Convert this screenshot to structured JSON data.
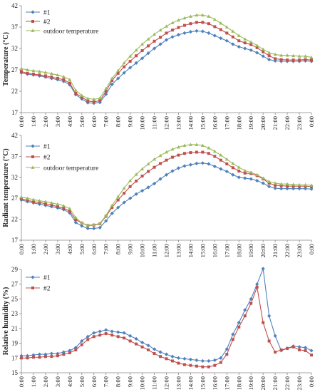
{
  "chart_data": [
    {
      "type": "line",
      "ylabel": "Temperature (°C)",
      "ylim": [
        17,
        42
      ],
      "yticks": [
        17,
        22,
        27,
        32,
        37,
        42
      ],
      "grid": false,
      "legend_position": "top-left",
      "x_labels": [
        "0:00",
        "1:00",
        "2:00",
        "3:00",
        "4:00",
        "5:00",
        "6:00",
        "7:00",
        "8:00",
        "9:00",
        "10:00",
        "11:00",
        "12:00",
        "13:00",
        "14:00",
        "15:00",
        "16:00",
        "17:00",
        "18:00",
        "19:00",
        "20:00",
        "21:00",
        "22:00",
        "23:00",
        "0:00"
      ],
      "series": [
        {
          "name": "#1",
          "color": "#4f81bd",
          "marker": "diamond",
          "values": [
            26.3,
            26.0,
            25.8,
            25.6,
            25.3,
            25.0,
            24.7,
            24.3,
            23.5,
            21.2,
            20.2,
            19.3,
            19.2,
            19.4,
            21.3,
            23.6,
            25.0,
            26.3,
            27.5,
            28.6,
            29.7,
            30.9,
            32.0,
            33.0,
            34.0,
            34.7,
            35.2,
            35.6,
            35.9,
            36.1,
            36.0,
            35.6,
            35.0,
            34.4,
            33.8,
            33.0,
            32.4,
            32.0,
            31.6,
            31.0,
            30.2,
            29.4,
            29.1,
            29.0,
            29.0,
            29.0,
            29.0,
            29.1,
            29.0
          ]
        },
        {
          "name": "#2",
          "color": "#c0504d",
          "marker": "square",
          "values": [
            26.6,
            26.2,
            26.0,
            25.8,
            25.6,
            25.3,
            25.0,
            24.7,
            23.9,
            21.5,
            20.6,
            19.7,
            19.5,
            19.8,
            22.0,
            24.5,
            26.2,
            27.7,
            29.0,
            30.3,
            31.5,
            32.6,
            33.7,
            34.6,
            35.6,
            36.3,
            36.9,
            37.4,
            37.8,
            38.1,
            38.1,
            37.8,
            37.1,
            36.4,
            35.6,
            34.7,
            33.8,
            33.3,
            32.9,
            32.2,
            31.2,
            30.3,
            29.6,
            29.4,
            29.3,
            29.3,
            29.3,
            29.4,
            29.3
          ]
        },
        {
          "name": "outdoor temperature",
          "color": "#9bbb59",
          "marker": "triangle",
          "values": [
            27.3,
            27.0,
            26.8,
            26.6,
            26.4,
            26.1,
            25.8,
            25.4,
            24.7,
            22.2,
            21.0,
            20.3,
            20.1,
            20.4,
            22.6,
            25.0,
            26.8,
            28.6,
            30.2,
            31.6,
            33.0,
            34.2,
            35.3,
            36.3,
            37.2,
            38.0,
            38.6,
            39.1,
            39.5,
            39.8,
            39.8,
            39.5,
            38.8,
            37.9,
            37.0,
            36.0,
            35.0,
            34.2,
            33.5,
            32.7,
            31.8,
            31.0,
            30.6,
            30.4,
            30.4,
            30.3,
            30.2,
            30.2,
            29.9
          ]
        }
      ]
    },
    {
      "type": "line",
      "ylabel": "Radiant temperature (°C)",
      "ylim": [
        17,
        42
      ],
      "yticks": [
        17,
        22,
        27,
        32,
        37,
        42
      ],
      "grid": false,
      "legend_position": "top-left",
      "x_labels": [
        "0:00",
        "1:00",
        "2:00",
        "3:00",
        "4:00",
        "5:00",
        "6:00",
        "7:00",
        "8:00",
        "9:00",
        "10:00",
        "11:00",
        "12:00",
        "13:00",
        "14:00",
        "15:00",
        "16:00",
        "17:00",
        "18:00",
        "19:00",
        "20:00",
        "21:00",
        "22:00",
        "23:00",
        "0:00"
      ],
      "series": [
        {
          "name": "#1",
          "color": "#4f81bd",
          "marker": "diamond",
          "values": [
            26.6,
            26.2,
            25.9,
            25.6,
            25.3,
            25.0,
            24.7,
            24.3,
            23.5,
            21.2,
            20.4,
            19.8,
            19.8,
            20.0,
            21.6,
            23.4,
            24.8,
            26.0,
            27.0,
            28.0,
            28.8,
            29.6,
            30.5,
            31.6,
            32.6,
            33.5,
            34.2,
            34.7,
            35.0,
            35.3,
            35.4,
            35.2,
            34.6,
            34.0,
            33.4,
            32.6,
            32.0,
            31.8,
            31.6,
            31.2,
            30.6,
            29.8,
            29.4,
            29.3,
            29.3,
            29.3,
            29.3,
            29.3,
            29.2
          ]
        },
        {
          "name": "#2",
          "color": "#c0504d",
          "marker": "square",
          "values": [
            26.9,
            26.5,
            26.2,
            26.0,
            25.7,
            25.4,
            25.0,
            24.6,
            23.9,
            21.9,
            21.1,
            20.5,
            20.6,
            20.9,
            22.7,
            24.8,
            26.6,
            28.2,
            29.8,
            31.1,
            32.3,
            33.4,
            34.4,
            35.3,
            36.1,
            36.8,
            37.3,
            37.7,
            37.9,
            38.0,
            38.0,
            37.7,
            37.0,
            36.1,
            35.2,
            34.3,
            33.5,
            33.0,
            32.9,
            32.4,
            31.6,
            30.6,
            30.1,
            30.0,
            29.9,
            29.9,
            29.9,
            29.9,
            29.8
          ]
        },
        {
          "name": "outdoor temperature",
          "color": "#9bbb59",
          "marker": "triangle",
          "values": [
            27.3,
            27.0,
            26.7,
            26.4,
            26.2,
            25.9,
            25.6,
            25.2,
            24.5,
            22.4,
            21.1,
            20.6,
            20.7,
            21.0,
            22.9,
            25.3,
            27.4,
            29.4,
            31.2,
            32.7,
            34.0,
            35.2,
            36.3,
            37.2,
            38.0,
            38.7,
            39.2,
            39.6,
            39.8,
            39.8,
            39.6,
            39.0,
            38.2,
            37.3,
            36.3,
            35.3,
            34.4,
            33.6,
            33.2,
            32.6,
            31.8,
            31.0,
            30.6,
            30.4,
            30.4,
            30.3,
            30.2,
            30.2,
            30.1
          ]
        }
      ]
    },
    {
      "type": "line",
      "ylabel": "Relative humidity (%)",
      "ylim": [
        15,
        29
      ],
      "yticks": [
        15,
        17,
        19,
        21,
        23,
        25,
        27,
        29
      ],
      "grid": false,
      "legend_position": "top-left",
      "x_labels": [
        "0:00",
        "1:00",
        "2:00",
        "3:00",
        "4:00",
        "5:00",
        "6:00",
        "7:00",
        "8:00",
        "9:00",
        "10:00",
        "11:00",
        "12:00",
        "13:00",
        "14:00",
        "15:00",
        "16:00",
        "17:00",
        "18:00",
        "19:00",
        "20:00",
        "21:00",
        "22:00",
        "23:00",
        "0:00"
      ],
      "series": [
        {
          "name": "#1",
          "color": "#4f81bd",
          "marker": "diamond",
          "values": [
            17.3,
            17.3,
            17.4,
            17.5,
            17.5,
            17.6,
            17.6,
            17.8,
            18.0,
            18.4,
            19.3,
            19.9,
            20.4,
            20.6,
            20.8,
            20.6,
            20.5,
            20.4,
            20.0,
            19.6,
            19.1,
            18.7,
            18.2,
            17.8,
            17.5,
            17.2,
            17.0,
            16.9,
            16.8,
            16.7,
            16.6,
            16.6,
            16.7,
            17.0,
            18.2,
            20.2,
            21.8,
            23.5,
            25.0,
            27.0,
            29.1,
            22.7,
            20.0,
            18.0,
            18.3,
            18.6,
            18.5,
            18.4,
            18.0
          ]
        },
        {
          "name": "#2",
          "color": "#c0504d",
          "marker": "square",
          "values": [
            17.0,
            17.0,
            17.1,
            17.1,
            17.2,
            17.2,
            17.3,
            17.5,
            17.7,
            18.1,
            18.8,
            19.5,
            19.9,
            20.1,
            20.3,
            20.1,
            19.9,
            19.7,
            19.3,
            18.9,
            18.5,
            18.1,
            17.6,
            17.2,
            16.9,
            16.6,
            16.3,
            16.1,
            16.0,
            15.9,
            15.8,
            15.8,
            16.0,
            16.4,
            17.5,
            19.5,
            21.2,
            22.7,
            24.4,
            26.6,
            21.8,
            19.3,
            17.8,
            18.1,
            18.3,
            18.5,
            18.1,
            18.0,
            17.4
          ]
        }
      ]
    }
  ]
}
